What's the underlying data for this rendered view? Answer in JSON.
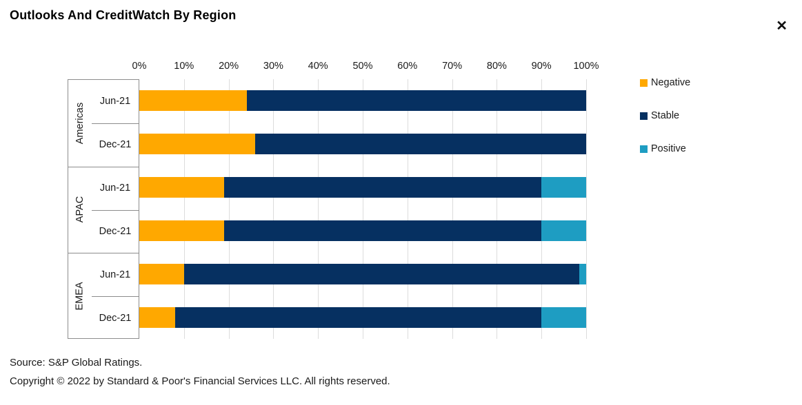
{
  "header": {
    "title": "Outlooks And CreditWatch By Region",
    "close_icon": "✕"
  },
  "chart_data": {
    "type": "bar",
    "orientation": "horizontal",
    "stacked": true,
    "unit": "percent",
    "axis": {
      "position": "top",
      "min": 0,
      "max": 100,
      "tick_labels": [
        "0%",
        "10%",
        "20%",
        "30%",
        "40%",
        "50%",
        "60%",
        "70%",
        "80%",
        "90%",
        "100%"
      ]
    },
    "gridlines": true,
    "series": [
      {
        "name": "Negative",
        "color": "#FFA800"
      },
      {
        "name": "Stable",
        "color": "#063061"
      },
      {
        "name": "Positive",
        "color": "#1E9DC2"
      }
    ],
    "legend": {
      "position": "right",
      "items": [
        "Negative",
        "Stable",
        "Positive"
      ]
    },
    "groups": [
      {
        "region": "Americas",
        "rows": [
          {
            "label": "Jun-21",
            "values": {
              "Negative": 24,
              "Stable": 76,
              "Positive": 0
            }
          },
          {
            "label": "Dec-21",
            "values": {
              "Negative": 26,
              "Stable": 74,
              "Positive": 0
            }
          }
        ]
      },
      {
        "region": "APAC",
        "rows": [
          {
            "label": "Jun-21",
            "values": {
              "Negative": 19,
              "Stable": 71,
              "Positive": 10
            }
          },
          {
            "label": "Dec-21",
            "values": {
              "Negative": 19,
              "Stable": 71,
              "Positive": 10
            }
          }
        ]
      },
      {
        "region": "EMEA",
        "rows": [
          {
            "label": "Jun-21",
            "values": {
              "Negative": 10,
              "Stable": 88.5,
              "Positive": 1.5
            }
          },
          {
            "label": "Dec-21",
            "values": {
              "Negative": 8,
              "Stable": 82,
              "Positive": 10
            }
          }
        ]
      }
    ]
  },
  "footer": {
    "source": "Source: S&P Global Ratings.",
    "copyright": "Copyright © 2022 by Standard & Poor's Financial Services LLC. All rights reserved."
  }
}
